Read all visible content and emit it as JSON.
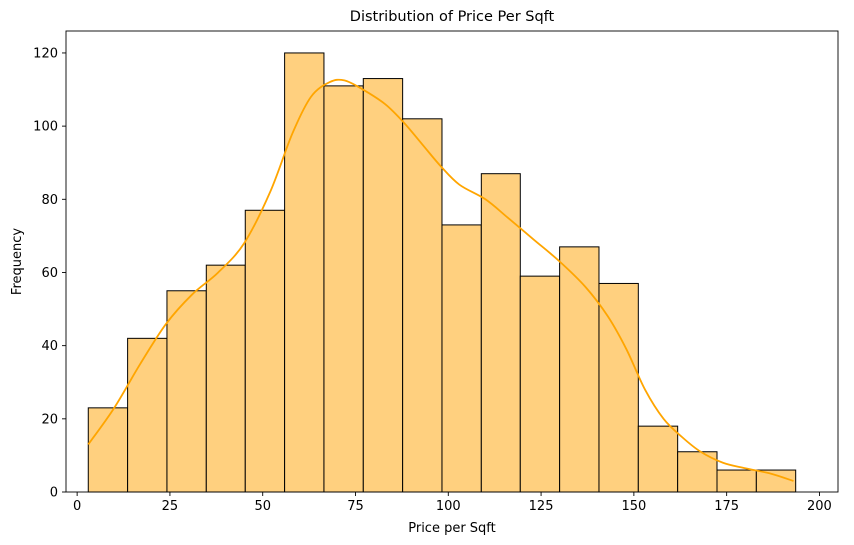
{
  "chart_data": {
    "type": "bar",
    "title": "Distribution of Price Per Sqft",
    "xlabel": "Price per Sqft",
    "ylabel": "Frequency",
    "xlim": [
      -3,
      205
    ],
    "ylim": [
      0,
      126
    ],
    "xticks": [
      0,
      25,
      50,
      75,
      100,
      125,
      150,
      175,
      200
    ],
    "yticks": [
      0,
      20,
      40,
      60,
      80,
      100,
      120
    ],
    "bins": [
      {
        "x0": 3.0,
        "x1": 13.6,
        "count": 23
      },
      {
        "x0": 13.6,
        "x1": 24.2,
        "count": 42
      },
      {
        "x0": 24.2,
        "x1": 34.8,
        "count": 55
      },
      {
        "x0": 34.8,
        "x1": 45.3,
        "count": 62
      },
      {
        "x0": 45.3,
        "x1": 55.9,
        "count": 77
      },
      {
        "x0": 55.9,
        "x1": 66.5,
        "count": 120
      },
      {
        "x0": 66.5,
        "x1": 77.1,
        "count": 111
      },
      {
        "x0": 77.1,
        "x1": 87.7,
        "count": 113
      },
      {
        "x0": 87.7,
        "x1": 98.3,
        "count": 102
      },
      {
        "x0": 98.3,
        "x1": 108.9,
        "count": 73
      },
      {
        "x0": 108.9,
        "x1": 119.4,
        "count": 87
      },
      {
        "x0": 119.4,
        "x1": 130.0,
        "count": 59
      },
      {
        "x0": 130.0,
        "x1": 140.6,
        "count": 67
      },
      {
        "x0": 140.6,
        "x1": 151.2,
        "count": 57
      },
      {
        "x0": 151.2,
        "x1": 161.8,
        "count": 18
      },
      {
        "x0": 161.8,
        "x1": 172.4,
        "count": 11
      },
      {
        "x0": 172.4,
        "x1": 183.0,
        "count": 6
      },
      {
        "x0": 183.0,
        "x1": 193.6,
        "count": 6
      }
    ],
    "kde": [
      [
        3,
        13
      ],
      [
        10,
        23
      ],
      [
        17,
        35
      ],
      [
        24,
        46
      ],
      [
        31,
        54
      ],
      [
        38,
        60
      ],
      [
        45,
        68
      ],
      [
        52,
        82
      ],
      [
        58,
        98
      ],
      [
        63,
        108
      ],
      [
        68,
        112
      ],
      [
        72,
        112.5
      ],
      [
        77,
        110
      ],
      [
        83,
        106
      ],
      [
        88,
        101
      ],
      [
        93,
        95
      ],
      [
        98,
        89
      ],
      [
        103,
        84
      ],
      [
        110,
        80
      ],
      [
        116,
        75
      ],
      [
        123,
        69
      ],
      [
        130,
        63
      ],
      [
        137,
        56
      ],
      [
        143,
        48
      ],
      [
        148,
        39
      ],
      [
        153,
        28
      ],
      [
        158,
        20
      ],
      [
        163,
        15
      ],
      [
        168,
        11
      ],
      [
        174,
        8
      ],
      [
        180,
        6.5
      ],
      [
        187,
        5
      ],
      [
        193,
        3
      ]
    ],
    "colors": {
      "bar_fill": "#ffd07f",
      "bar_edge": "#000000",
      "kde_line": "#ffa500"
    },
    "grid": false,
    "legend": "none"
  }
}
